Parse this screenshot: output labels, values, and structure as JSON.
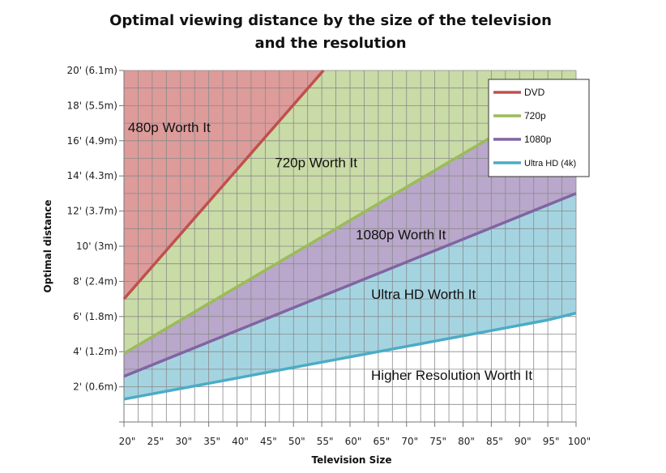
{
  "chart_data": {
    "type": "line",
    "title_lines": [
      "Optimal viewing distance by the size of the television",
      "and the resolution"
    ],
    "xlabel": "Television Size",
    "ylabel": "Optimal distance",
    "xlim": [
      20,
      100
    ],
    "ylim": [
      0,
      20
    ],
    "x_ticks": [
      {
        "value": 20,
        "label": "20\""
      },
      {
        "value": 25,
        "label": "25\""
      },
      {
        "value": 30,
        "label": "30\""
      },
      {
        "value": 35,
        "label": "35\""
      },
      {
        "value": 40,
        "label": "40\""
      },
      {
        "value": 45,
        "label": "45\""
      },
      {
        "value": 50,
        "label": "50\""
      },
      {
        "value": 55,
        "label": "55\""
      },
      {
        "value": 60,
        "label": "60\""
      },
      {
        "value": 65,
        "label": "65\""
      },
      {
        "value": 70,
        "label": "70\""
      },
      {
        "value": 75,
        "label": "75\""
      },
      {
        "value": 80,
        "label": "80\""
      },
      {
        "value": 85,
        "label": "85\""
      },
      {
        "value": 90,
        "label": "90\""
      },
      {
        "value": 95,
        "label": "95\""
      },
      {
        "value": 100,
        "label": "100\""
      }
    ],
    "y_ticks": [
      {
        "value": 2,
        "label": "2' (0.6m)"
      },
      {
        "value": 4,
        "label": "4' (1.2m)"
      },
      {
        "value": 6,
        "label": "6' (1.8m)"
      },
      {
        "value": 8,
        "label": "8' (2.4m)"
      },
      {
        "value": 10,
        "label": "10' (3m)"
      },
      {
        "value": 12,
        "label": "12' (3.7m)"
      },
      {
        "value": 14,
        "label": "14' (4.3m)"
      },
      {
        "value": 16,
        "label": "16' (4.9m)"
      },
      {
        "value": 18,
        "label": "18' (5.5m)"
      },
      {
        "value": 20,
        "label": "20' (6.1m)"
      }
    ],
    "grid": true,
    "legend_position": "top-right",
    "series": [
      {
        "name": "DVD",
        "color": "#c0504d",
        "x": [
          20,
          55.3
        ],
        "y": [
          7.0,
          20.0
        ]
      },
      {
        "name": "720p",
        "color": "#9bbb59",
        "x": [
          20,
          85.5
        ],
        "y": [
          3.9,
          16.3
        ]
      },
      {
        "name": "1080p",
        "color": "#8064a2",
        "x": [
          20,
          100
        ],
        "y": [
          2.6,
          13.0
        ]
      },
      {
        "name": "Ultra HD (4k)",
        "color": "#4bacc6",
        "x": [
          20,
          25,
          30,
          35,
          40,
          45,
          50,
          55,
          60,
          65,
          70,
          75,
          80,
          85,
          90,
          95,
          100
        ],
        "y": [
          1.3,
          1.6,
          1.9,
          2.2,
          2.5,
          2.8,
          3.1,
          3.4,
          3.7,
          4.0,
          4.3,
          4.6,
          4.9,
          5.2,
          5.5,
          5.8,
          6.2
        ]
      }
    ],
    "regions": [
      {
        "label": "480p Worth It",
        "color": "#dd9b9a",
        "label_at": {
          "x": 28,
          "y": 16.5
        }
      },
      {
        "label": "720p Worth It",
        "color": "#c9dba6",
        "label_at": {
          "x": 54,
          "y": 14.5
        }
      },
      {
        "label": "1080p Worth It",
        "color": "#b9a8cb",
        "label_at": {
          "x": 69,
          "y": 10.4
        }
      },
      {
        "label": "Ultra HD Worth It",
        "color": "#a5d4e1",
        "label_at": {
          "x": 73,
          "y": 7.0
        }
      },
      {
        "label": "Higher Resolution Worth It",
        "color": "#ffffff",
        "label_at": {
          "x": 78,
          "y": 2.4
        }
      }
    ]
  }
}
